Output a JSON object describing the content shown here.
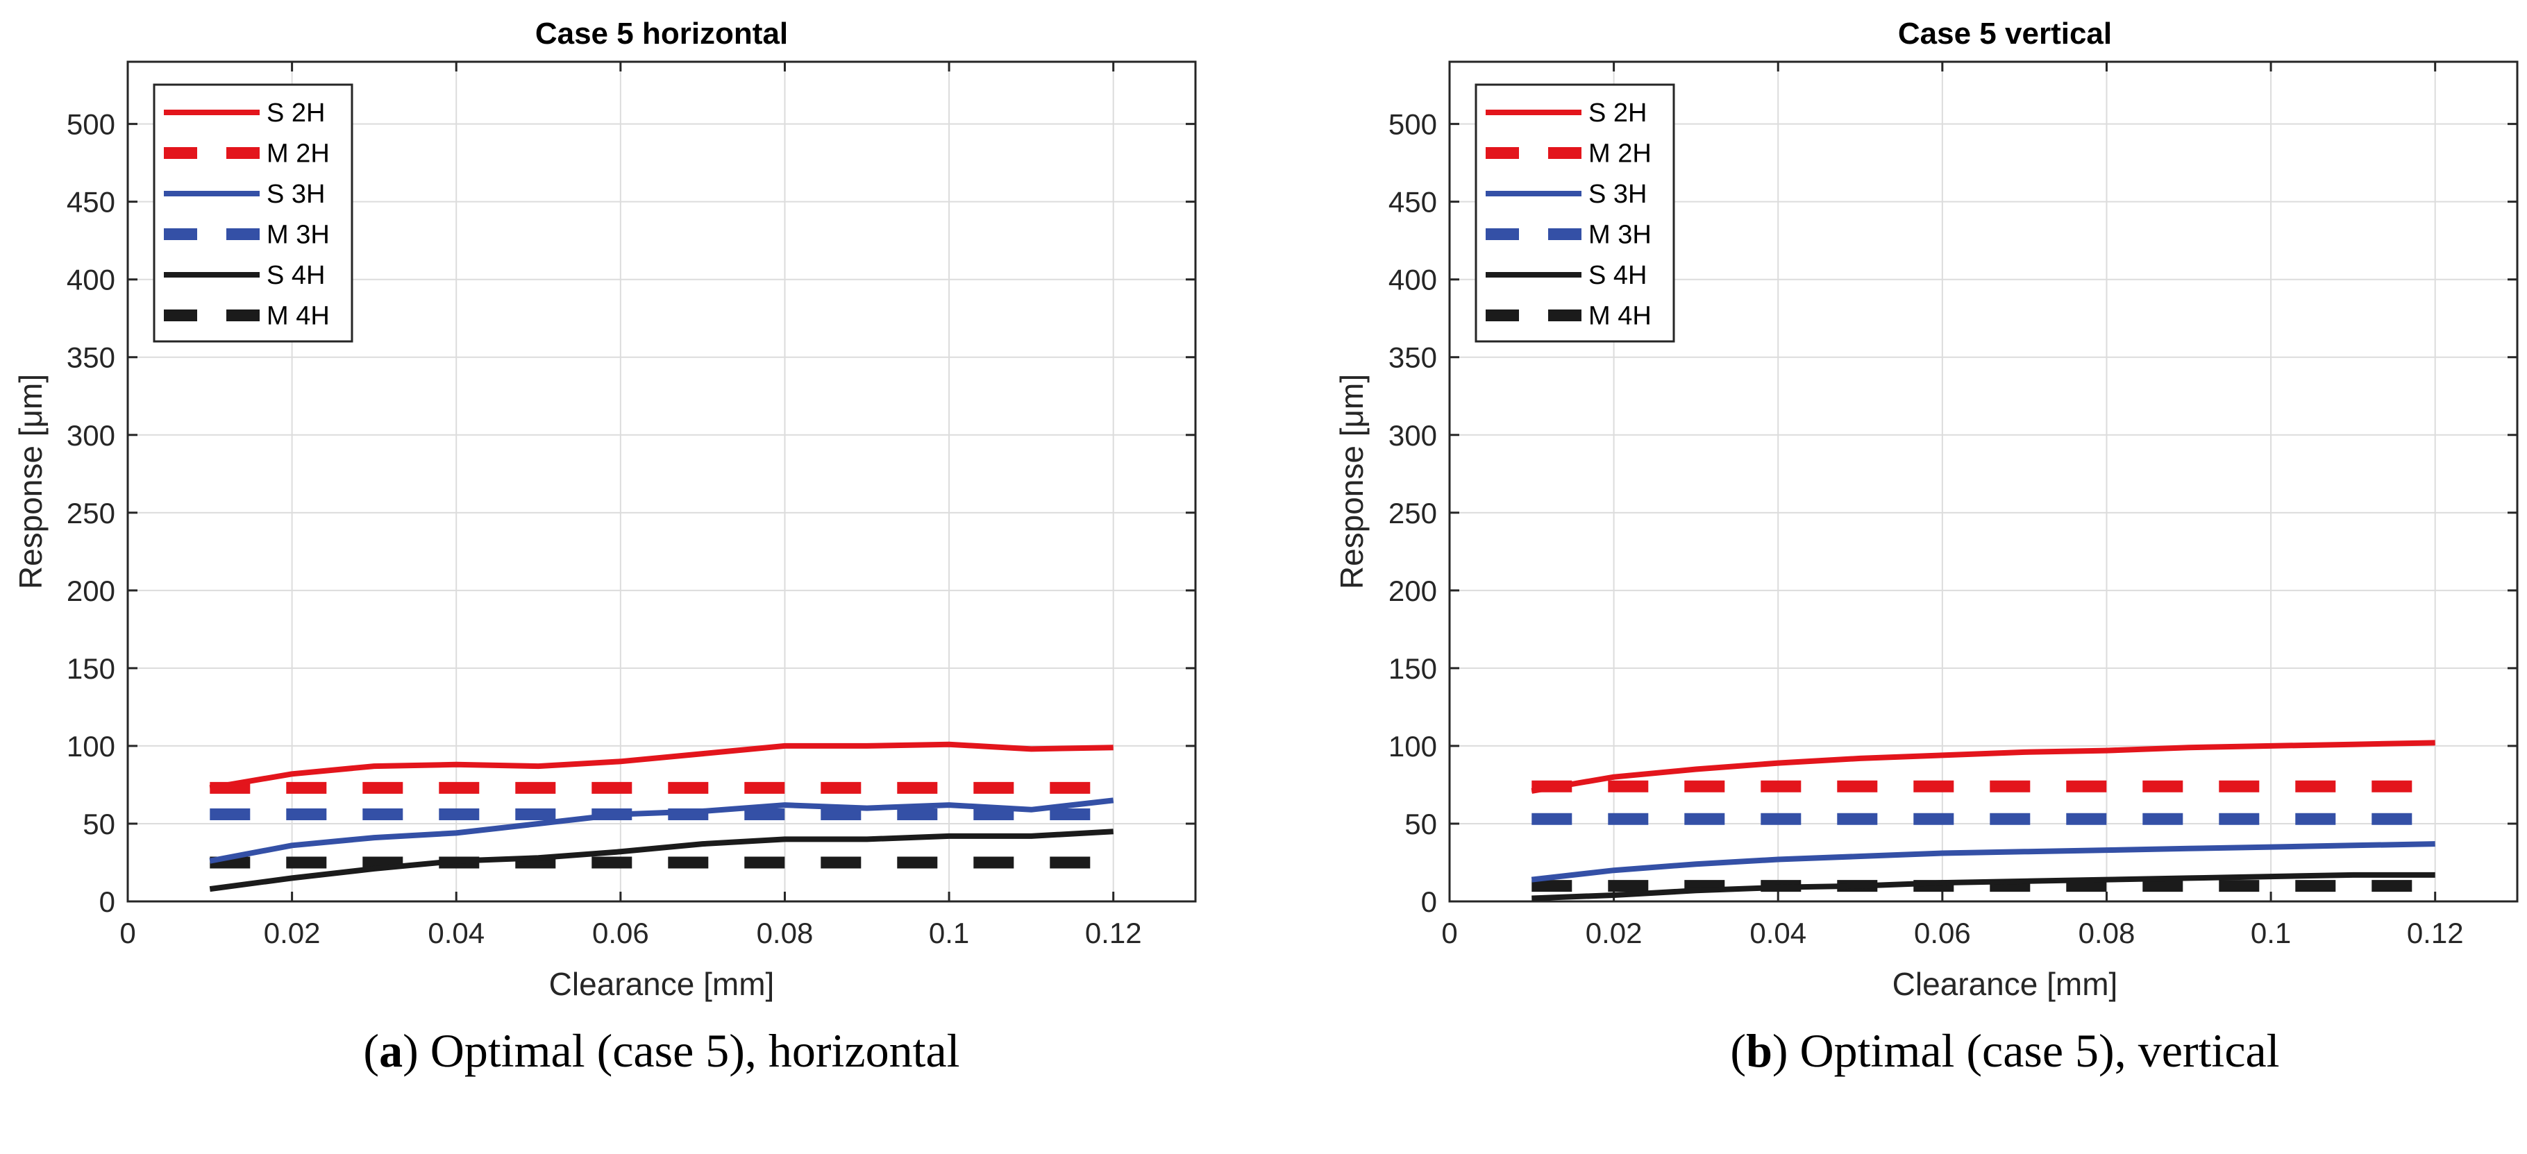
{
  "colors": {
    "red": "#e3151c",
    "blue": "#3450a6",
    "black": "#1b1b1b",
    "grid": "#dcdcdc",
    "axis": "#262626"
  },
  "chart_data": [
    {
      "type": "line",
      "title": "Case 5 horizontal",
      "xlabel": "Clearance [mm]",
      "ylabel": "Response [μm]",
      "xlim": [
        0,
        0.13
      ],
      "ylim": [
        0,
        540
      ],
      "xticks": [
        0,
        0.02,
        0.04,
        0.06,
        0.08,
        0.1,
        0.12
      ],
      "xticklabels": [
        "0",
        "0.02",
        "0.04",
        "0.06",
        "0.08",
        "0.1",
        "0.12"
      ],
      "yticks": [
        0,
        50,
        100,
        150,
        200,
        250,
        300,
        350,
        400,
        450,
        500
      ],
      "yticklabels": [
        "0",
        "50",
        "100",
        "150",
        "200",
        "250",
        "300",
        "350",
        "400",
        "450",
        "500"
      ],
      "legend_position": "top-left",
      "x": [
        0.01,
        0.02,
        0.03,
        0.04,
        0.05,
        0.06,
        0.07,
        0.08,
        0.09,
        0.1,
        0.11,
        0.12
      ],
      "series": [
        {
          "name": "S 2H",
          "color": "red",
          "style": "solid",
          "values": [
            73,
            82,
            87,
            88,
            87,
            90,
            95,
            100,
            100,
            101,
            98,
            99
          ]
        },
        {
          "name": "M 2H",
          "color": "red",
          "style": "dashed",
          "values": [
            73,
            73,
            73,
            73,
            73,
            73,
            73,
            73,
            73,
            73,
            73,
            73
          ]
        },
        {
          "name": "S 3H",
          "color": "blue",
          "style": "solid",
          "values": [
            26,
            36,
            41,
            44,
            50,
            56,
            58,
            62,
            60,
            62,
            59,
            65
          ]
        },
        {
          "name": "M 3H",
          "color": "blue",
          "style": "dashed",
          "values": [
            56,
            56,
            56,
            56,
            56,
            56,
            56,
            56,
            56,
            56,
            56,
            56
          ]
        },
        {
          "name": "S 4H",
          "color": "black",
          "style": "solid",
          "values": [
            8,
            15,
            21,
            26,
            28,
            32,
            37,
            40,
            40,
            42,
            42,
            45
          ]
        },
        {
          "name": "M 4H",
          "color": "black",
          "style": "dashed",
          "values": [
            25,
            25,
            25,
            25,
            25,
            25,
            25,
            25,
            25,
            25,
            25,
            25
          ]
        }
      ]
    },
    {
      "type": "line",
      "title": "Case 5 vertical",
      "xlabel": "Clearance [mm]",
      "ylabel": "Response [μm]",
      "xlim": [
        0,
        0.13
      ],
      "ylim": [
        0,
        540
      ],
      "xticks": [
        0,
        0.02,
        0.04,
        0.06,
        0.08,
        0.1,
        0.12
      ],
      "xticklabels": [
        "0",
        "0.02",
        "0.04",
        "0.06",
        "0.08",
        "0.1",
        "0.12"
      ],
      "yticks": [
        0,
        50,
        100,
        150,
        200,
        250,
        300,
        350,
        400,
        450,
        500
      ],
      "yticklabels": [
        "0",
        "50",
        "100",
        "150",
        "200",
        "250",
        "300",
        "350",
        "400",
        "450",
        "500"
      ],
      "legend_position": "top-left",
      "x": [
        0.01,
        0.02,
        0.03,
        0.04,
        0.05,
        0.06,
        0.07,
        0.08,
        0.09,
        0.1,
        0.11,
        0.12
      ],
      "series": [
        {
          "name": "S 2H",
          "color": "red",
          "style": "solid",
          "values": [
            71,
            80,
            85,
            89,
            92,
            94,
            96,
            97,
            99,
            100,
            101,
            102
          ]
        },
        {
          "name": "M 2H",
          "color": "red",
          "style": "dashed",
          "values": [
            74,
            74,
            74,
            74,
            74,
            74,
            74,
            74,
            74,
            74,
            74,
            74
          ]
        },
        {
          "name": "S 3H",
          "color": "blue",
          "style": "solid",
          "values": [
            14,
            20,
            24,
            27,
            29,
            31,
            32,
            33,
            34,
            35,
            36,
            37
          ]
        },
        {
          "name": "M 3H",
          "color": "blue",
          "style": "dashed",
          "values": [
            53,
            53,
            53,
            53,
            53,
            53,
            53,
            53,
            53,
            53,
            53,
            53
          ]
        },
        {
          "name": "S 4H",
          "color": "black",
          "style": "solid",
          "values": [
            2,
            4,
            7,
            9,
            10,
            12,
            13,
            14,
            15,
            16,
            17,
            17
          ]
        },
        {
          "name": "M 4H",
          "color": "black",
          "style": "dashed",
          "values": [
            10,
            10,
            10,
            10,
            10,
            10,
            10,
            10,
            10,
            10,
            10,
            10
          ]
        }
      ]
    }
  ],
  "captions": [
    {
      "letter": "a",
      "text": " Optimal (case 5), horizontal"
    },
    {
      "letter": "b",
      "text": " Optimal (case 5), vertical"
    }
  ]
}
